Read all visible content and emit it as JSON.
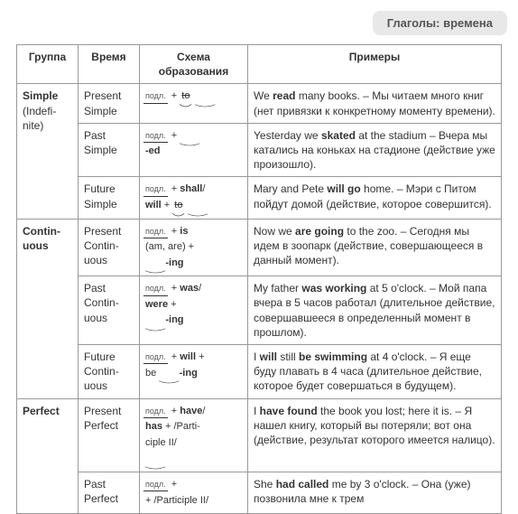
{
  "header": {
    "title": "Глаголы: времена"
  },
  "table": {
    "columns": [
      "Группа",
      "Время",
      "Схема образования",
      "Примеры"
    ],
    "groups": [
      {
        "name_html": "<span class='b'>Simple</span><br>(Indefi-<br>nite)",
        "tenses": [
          {
            "time": "Present Simple",
            "formula_html": "<span class='podl'>подл.</span>&nbsp;&nbsp;+&nbsp;<span class='arc strike'>to<svg viewBox='0 0 20 8'><path d='M0,0 Q10,8 20,0' fill='none' stroke='#333' stroke-width='1'/></svg></span>&nbsp;<span class='arc'>&nbsp;&nbsp;&nbsp;&nbsp;&nbsp;&nbsp;<svg viewBox='0 0 40 8'><path d='M0,0 Q20,8 40,0' fill='none' stroke='#333' stroke-width='1'/></svg></span>",
            "example_html": "We <b>read</b> many books. – Мы читаем много книг (нет привязки к конкретному моменту времени)."
          },
          {
            "time": "Past Simple",
            "formula_html": "<span class='podl'>подл.</span>&nbsp;&nbsp;+&nbsp;<span class='arc'>&nbsp;&nbsp;&nbsp;&nbsp;&nbsp;&nbsp;<svg viewBox='0 0 40 8'><path d='M0,0 Q20,8 40,0' fill='none' stroke='#333' stroke-width='1'/></svg></span><br><b>-ed</b>",
            "example_html": "Yesterday we <b>skated</b> at the stadium – Вчера мы катались на коньках на стадионе (действие уже произошло)."
          },
          {
            "time": "Future Simple",
            "formula_html": "<span class='podl'>подл.</span>&nbsp;&nbsp;+&nbsp;<b>shall</b>/<br><b>will</b>&nbsp;+&nbsp;<span class='arc strike'>to<svg viewBox='0 0 20 8'><path d='M0,0 Q10,8 20,0' fill='none' stroke='#333' stroke-width='1'/></svg></span>&nbsp;<span class='arc'>&nbsp;&nbsp;&nbsp;&nbsp;&nbsp;&nbsp;<svg viewBox='0 0 40 8'><path d='M0,0 Q20,8 40,0' fill='none' stroke='#333' stroke-width='1'/></svg></span>",
            "example_html": "Mary and Pete <b>will go</b> home. – Мэри с Питом пойдут домой (действие, которое совершится)."
          }
        ]
      },
      {
        "name_html": "<span class='b'>Contin-<br>uous</span>",
        "tenses": [
          {
            "time": "Present Contin-uous",
            "formula_html": "<span class='podl'>подл.</span>&nbsp;&nbsp;+&nbsp;<b>is</b><br>(am, are)&nbsp;+<br><span class='arc'>&nbsp;&nbsp;&nbsp;&nbsp;&nbsp;&nbsp;<svg viewBox='0 0 40 8'><path d='M0,0 Q20,8 40,0' fill='none' stroke='#333' stroke-width='1'/></svg></span><b>-ing</b>",
            "example_html": "Now we <b>are going</b> to the zoo. – Сегодня мы идем в зоопарк (действие, совершающееся в данный момент)."
          },
          {
            "time": "Past Contin-uous",
            "formula_html": "<span class='podl'>подл.</span>&nbsp;&nbsp;+&nbsp;<b>was</b>/<br><b>were</b>&nbsp;+<br><span class='arc'>&nbsp;&nbsp;&nbsp;&nbsp;&nbsp;&nbsp;<svg viewBox='0 0 40 8'><path d='M0,0 Q20,8 40,0' fill='none' stroke='#333' stroke-width='1'/></svg></span><b>-ing</b>",
            "example_html": "My father <b>was working</b> at 5 o'clock. – Мой папа вчера в 5 часов работал (длительное действие, совершавшееся в определенный момент в прошлом)."
          },
          {
            "time": "Future Contin-uous",
            "formula_html": "<span class='podl'>подл.</span>&nbsp;&nbsp;+&nbsp;<b>will</b>&nbsp;+<br>be&nbsp;<span class='arc'>&nbsp;&nbsp;&nbsp;&nbsp;&nbsp;&nbsp;<svg viewBox='0 0 40 8'><path d='M0,0 Q20,8 40,0' fill='none' stroke='#333' stroke-width='1'/></svg></span><b>-ing</b>",
            "example_html": "I <b>will</b> still <b>be swimming</b> at 4 o'clock. – Я еще буду плавать в 4 часа (длительное действие, которое будет совершаться в будущем)."
          }
        ]
      },
      {
        "name_html": "<span class='b'>Perfect</span>",
        "tenses": [
          {
            "time": "Present Perfect",
            "formula_html": "<span class='podl'>подл.</span>&nbsp;&nbsp;+&nbsp;<b>have</b>/<br><b>has</b>&nbsp;+&nbsp;/Parti-<br>ciple II/<br><span class='arc'>&nbsp;&nbsp;&nbsp;&nbsp;&nbsp;&nbsp;<svg viewBox='0 0 40 8'><path d='M0,0 Q20,8 40,0' fill='none' stroke='#333' stroke-width='1'/></svg></span>",
            "example_html": "I <b>have found</b> the book you lost; here it is. – Я нашел книгу, который вы потеряли; вот она (действие, результат которого имеется налицо)."
          },
          {
            "time": "Past Perfect",
            "formula_html": "<span class='podl'>подл.</span>&nbsp;&nbsp;+<br>+&nbsp;/Participle II/",
            "example_html": "She <b>had called</b> me by 3 o'clock. – Она (уже) позвонила мне к трем"
          }
        ]
      }
    ]
  },
  "style": {
    "bg": "#ffffff",
    "border": "#999999",
    "pill_bg": "#e8e8e8",
    "text": "#333333",
    "font_size_base": 12,
    "font_size_header": 13
  }
}
